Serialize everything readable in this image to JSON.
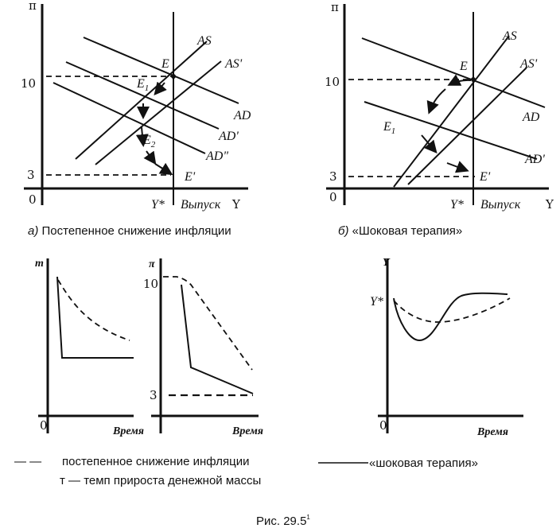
{
  "panel_a": {
    "y_axis": "π",
    "tick_10": "10",
    "tick_3": "3",
    "origin": "0",
    "y_star": "Y*",
    "x_label": "Выпуск",
    "x_axis": "Y",
    "curves": {
      "as": "AS",
      "as2": "AS'",
      "ad": "AD",
      "ad2": "AD'",
      "ad3": "AD\""
    },
    "points": {
      "e": "E",
      "e1": "E",
      "e1_sub": "1",
      "e2": "E",
      "e2_sub": "2",
      "e_final": "E'"
    },
    "caption_prefix": "а)",
    "caption": "Постепенное снижение инфляции"
  },
  "panel_b": {
    "y_axis": "π",
    "tick_10": "10",
    "tick_3": "3",
    "origin": "0",
    "y_star": "Y*",
    "x_label": "Выпуск",
    "x_axis": "Y",
    "curves": {
      "as": "AS",
      "as2": "AS'",
      "ad": "AD",
      "ad2": "AD'"
    },
    "points": {
      "e": "E",
      "e1": "E",
      "e1_sub": "1",
      "e_final": "E'"
    },
    "caption_prefix": "б)",
    "caption": "«Шоковая терапия»"
  },
  "chart_m": {
    "y_axis": "т",
    "origin": "0",
    "x_label": "Время"
  },
  "chart_pi": {
    "y_axis": "π",
    "tick_10": "10",
    "tick_3": "3",
    "x_label": "Время"
  },
  "chart_y": {
    "y_axis": "Y",
    "y_star": "Y*",
    "origin": "0",
    "x_label": "Время"
  },
  "legend": {
    "dashed_symbol": "— —",
    "dashed_label": "постепенное снижение инфляции",
    "solid_label": "«шоковая терапия»",
    "m_definition": "т — темп прироста денежной массы"
  },
  "figure_caption": "Рис. 29.5",
  "figure_footnote": "1"
}
